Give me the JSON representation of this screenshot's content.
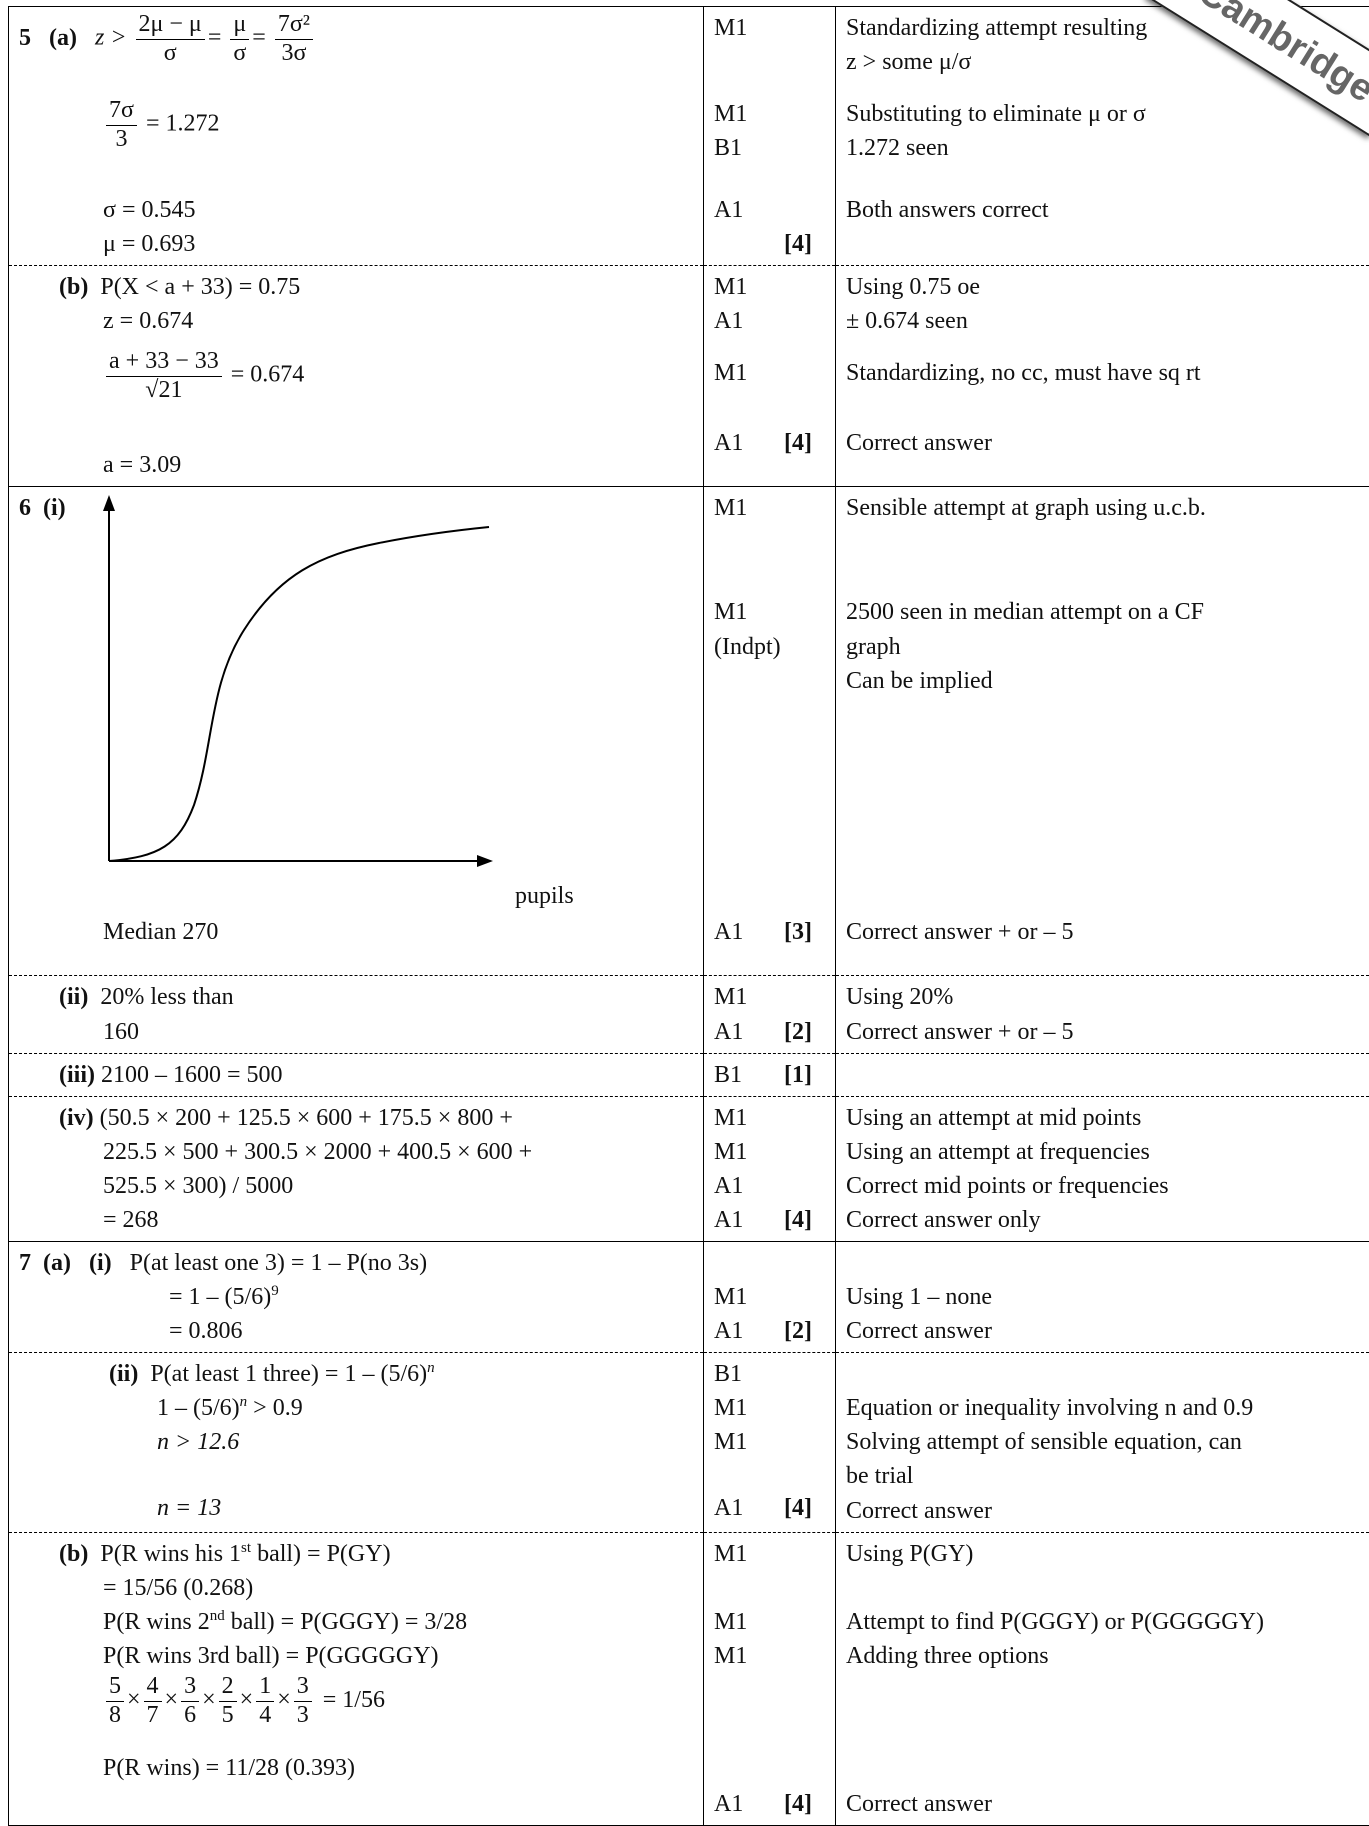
{
  "watermark": "aCambridge",
  "q5": {
    "num": "5",
    "a_label": "(a)",
    "a_line1": {
      "lhs": "z >",
      "f1n": "2μ − μ",
      "f1d": "σ",
      "eq1": "=",
      "f2n": "μ",
      "f2d": "σ",
      "eq2": "=",
      "f3n": "7σ²",
      "f3d": "3σ"
    },
    "a_line2": {
      "fn": "7σ",
      "fd": "3",
      "rhs": "= 1.272"
    },
    "a_sigma": "σ = 0.545",
    "a_mu": "μ = 0.693",
    "a_marks": [
      "M1",
      "M1",
      "B1",
      "A1"
    ],
    "a_total": "[4]",
    "a_comments": [
      "Standardizing attempt resulting",
      "z > some μ/σ",
      "Substituting to eliminate μ or σ",
      "1.272 seen",
      "Both answers correct"
    ],
    "b_label": "(b)",
    "b_l1": "P(X < a + 33) = 0.75",
    "b_l2": "z = 0.674",
    "b_fn": "a + 33 − 33",
    "b_fd": "√21",
    "b_rhs": "= 0.674",
    "b_l4": "a = 3.09",
    "b_marks": [
      "M1",
      "A1",
      "M1",
      "A1"
    ],
    "b_total": "[4]",
    "b_comments": [
      "Using 0.75 oe",
      "± 0.674 seen",
      "Standardizing, no cc, must have sq rt",
      "Correct answer"
    ]
  },
  "q6": {
    "num": "6",
    "i_label": "(i)",
    "graph_xlabel": "pupils",
    "i_median": "Median 270",
    "i_marks": [
      "M1",
      "M1",
      "(Indpt)",
      "A1"
    ],
    "i_total": "[3]",
    "i_comments": [
      "Sensible attempt at graph using u.c.b.",
      "2500 seen in median attempt on a CF",
      "graph",
      "Can be implied",
      "Correct answer + or – 5"
    ],
    "ii_label": "(ii)",
    "ii_l1": "20% less than",
    "ii_l2": "160",
    "ii_marks": [
      "M1",
      "A1"
    ],
    "ii_total": "[2]",
    "ii_comments": [
      "Using 20%",
      "Correct answer + or – 5"
    ],
    "iii_label": "(iii)",
    "iii_l1": "2100 – 1600 = 500",
    "iii_marks": [
      "B1"
    ],
    "iii_total": "[1]",
    "iv_label": "(iv)",
    "iv_lines": [
      "(50.5 × 200 + 125.5 × 600 + 175.5 × 800 +",
      "225.5 × 500 + 300.5 × 2000 + 400.5 × 600 +",
      "525.5 × 300) / 5000",
      "= 268"
    ],
    "iv_marks": [
      "M1",
      "M1",
      "A1",
      "A1"
    ],
    "iv_total": "[4]",
    "iv_comments": [
      "Using an attempt at mid points",
      "Using an attempt at frequencies",
      "Correct mid points or frequencies",
      "Correct answer only"
    ]
  },
  "q7": {
    "num": "7",
    "a_label": "(a)",
    "ai_label": "(i)",
    "ai_lines": [
      "P(at least one 3) = 1 – P(no 3s)",
      "= 1 – (5/6)",
      "= 0.806"
    ],
    "ai_sup": "9",
    "ai_marks": [
      "M1",
      "A1"
    ],
    "ai_total": "[2]",
    "ai_comments": [
      "Using 1 – none",
      "Correct answer"
    ],
    "aii_label": "(ii)",
    "aii_l1": "P(at least 1 three) = 1 – (5/6)",
    "aii_l2": "1 – (5/6)",
    "aii_l2b": " > 0.9",
    "aii_l3": "n > 12.6",
    "aii_l4": "n = 13",
    "aii_sup": "n",
    "aii_marks": [
      "B1",
      "M1",
      "M1",
      "A1"
    ],
    "aii_total": "[4]",
    "aii_comments": [
      "Equation or inequality involving n and 0.9",
      "Solving attempt of sensible equation, can",
      "be trial",
      "Correct answer"
    ],
    "b_label": "(b)",
    "b_l1a": "P(R wins his 1",
    "b_l1sup": "st",
    "b_l1b": " ball) = P(GY)",
    "b_l2": "= 15/56 (0.268)",
    "b_l3a": "P(R wins 2",
    "b_l3sup": "nd",
    "b_l3b": " ball) = P(GGGY) = 3/28",
    "b_l4": "P(R wins 3rd ball) = P(GGGGGY)",
    "b_fracs": [
      [
        "5",
        "8"
      ],
      [
        "4",
        "7"
      ],
      [
        "3",
        "6"
      ],
      [
        "2",
        "5"
      ],
      [
        "1",
        "4"
      ],
      [
        "3",
        "3"
      ]
    ],
    "b_times": "×",
    "b_frac_rhs": "= 1/56",
    "b_l6": "P(R wins) = 11/28 (0.393)",
    "b_marks": [
      "M1",
      "M1",
      "M1",
      "A1"
    ],
    "b_total": "[4]",
    "b_comments": [
      "Using P(GY)",
      "Attempt to find P(GGGY) or P(GGGGGY)",
      "Adding three options",
      "Correct answer"
    ]
  }
}
